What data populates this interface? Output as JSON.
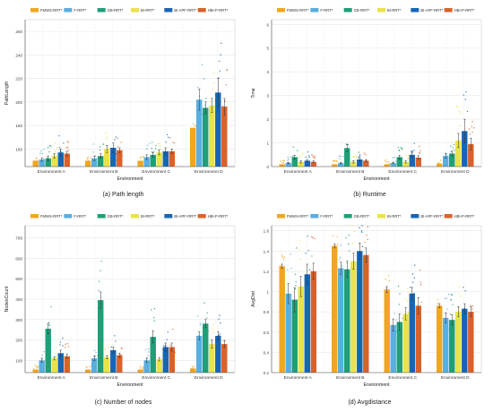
{
  "colors": {
    "series": [
      "#f0a623",
      "#5aaee0",
      "#1f9e78",
      "#e8e34a",
      "#1766b5",
      "#d9622b"
    ],
    "grid": "#e6e6e6",
    "axis": "#555555"
  },
  "captions": [
    "(a) Path length",
    "(b) Runtime",
    "(c) Number of nodes",
    "(d) Avgdistance"
  ],
  "chart_data": [
    {
      "type": "bar",
      "title": "(a) Path length",
      "xlabel": "Environment",
      "ylabel": "PathLength",
      "categories": [
        "Environment A",
        "Environment B",
        "Environment C",
        "Environment D"
      ],
      "ylim": [
        145,
        270
      ],
      "yticks": [
        160,
        180,
        200,
        220,
        240,
        260
      ],
      "grid": true,
      "legend_position": "top",
      "series": [
        {
          "name": "FMWS-RRT*",
          "values": [
            150,
            150,
            150,
            178
          ],
          "errors": [
            0,
            0,
            0,
            0
          ]
        },
        {
          "name": "F-RRT*",
          "values": [
            151,
            152,
            153,
            202
          ],
          "errors": [
            1.5,
            2,
            2,
            9
          ]
        },
        {
          "name": "GB-RRT*",
          "values": [
            152,
            154,
            155,
            195
          ],
          "errors": [
            2,
            2,
            2,
            5
          ]
        },
        {
          "name": "BI-RRT*",
          "values": [
            154,
            160,
            157,
            197
          ],
          "errors": [
            2,
            3,
            2,
            6
          ]
        },
        {
          "name": "BI-APF-RRT*",
          "values": [
            157,
            161,
            158,
            208
          ],
          "errors": [
            3,
            4,
            3,
            12
          ]
        },
        {
          "name": "HBI-P-RRT*",
          "values": [
            156,
            159,
            158,
            196
          ],
          "errors": [
            2,
            2,
            2,
            7
          ]
        }
      ]
    },
    {
      "type": "bar",
      "title": "(b) Runtime",
      "xlabel": "Environment",
      "ylabel": "Time",
      "categories": [
        "Environment A",
        "Environment B",
        "Environment C",
        "Environment D"
      ],
      "ylim": [
        0,
        6.2
      ],
      "yticks": [
        0,
        1,
        2,
        3,
        4,
        5,
        6
      ],
      "grid": true,
      "legend_position": "top",
      "series": [
        {
          "name": "FMWS-RRT*",
          "values": [
            0.1,
            0.1,
            0.1,
            0.12
          ],
          "errors": [
            0,
            0,
            0,
            0
          ]
        },
        {
          "name": "F-RRT*",
          "values": [
            0.15,
            0.15,
            0.15,
            0.45
          ],
          "errors": [
            0.03,
            0.03,
            0.03,
            0.1
          ]
        },
        {
          "name": "GB-RRT*",
          "values": [
            0.4,
            0.78,
            0.4,
            0.55
          ],
          "errors": [
            0.08,
            0.15,
            0.08,
            0.1
          ]
        },
        {
          "name": "BI-RRT*",
          "values": [
            0.2,
            0.2,
            0.2,
            1.1
          ],
          "errors": [
            0.05,
            0.05,
            0.05,
            0.3
          ]
        },
        {
          "name": "BI-APF-RRT*",
          "values": [
            0.25,
            0.3,
            0.5,
            1.5
          ],
          "errors": [
            0.05,
            0.06,
            0.1,
            0.5
          ]
        },
        {
          "name": "HBI-P-RRT*",
          "values": [
            0.2,
            0.25,
            0.38,
            0.95
          ],
          "errors": [
            0.04,
            0.05,
            0.08,
            0.25
          ]
        }
      ]
    },
    {
      "type": "bar",
      "title": "(c) Number of nodes",
      "xlabel": "Environment",
      "ylabel": "NodesCount",
      "categories": [
        "Environment A",
        "Environment B",
        "Environment C",
        "Environment D"
      ],
      "ylim": [
        40,
        760
      ],
      "yticks": [
        100,
        200,
        300,
        400,
        500,
        600,
        700
      ],
      "grid": true,
      "legend_position": "top",
      "series": [
        {
          "name": "FMWS-RRT*",
          "values": [
            55,
            55,
            55,
            60
          ],
          "errors": [
            0,
            0,
            0,
            0
          ]
        },
        {
          "name": "F-RRT*",
          "values": [
            100,
            110,
            100,
            220
          ],
          "errors": [
            10,
            12,
            10,
            20
          ]
        },
        {
          "name": "GB-RRT*",
          "values": [
            255,
            395,
            215,
            280
          ],
          "errors": [
            25,
            40,
            30,
            20
          ]
        },
        {
          "name": "BI-RRT*",
          "values": [
            110,
            115,
            105,
            180
          ],
          "errors": [
            8,
            8,
            8,
            20
          ]
        },
        {
          "name": "BI-APF-RRT*",
          "values": [
            135,
            150,
            165,
            220
          ],
          "errors": [
            15,
            15,
            20,
            20
          ]
        },
        {
          "name": "HBI-P-RRT*",
          "values": [
            120,
            125,
            165,
            180
          ],
          "errors": [
            10,
            10,
            20,
            15
          ]
        }
      ]
    },
    {
      "type": "bar",
      "title": "(d) Avgdistance",
      "xlabel": "Environment",
      "ylabel": "AvgDist",
      "categories": [
        "Environment A",
        "Environment B",
        "Environment C",
        "Environment D"
      ],
      "ylim": [
        0.2,
        1.65
      ],
      "yticks": [
        0.2,
        0.4,
        0.6,
        0.8,
        1.0,
        1.2,
        1.4,
        1.6
      ],
      "grid": true,
      "legend_position": "top",
      "series": [
        {
          "name": "FMWS-RRT*",
          "values": [
            1.25,
            1.45,
            1.02,
            0.86
          ],
          "errors": [
            0.02,
            0.02,
            0.03,
            0.02
          ]
        },
        {
          "name": "F-RRT*",
          "values": [
            0.98,
            1.23,
            0.67,
            0.74
          ],
          "errors": [
            0.1,
            0.06,
            0.06,
            0.05
          ]
        },
        {
          "name": "GB-RRT*",
          "values": [
            0.92,
            1.22,
            0.7,
            0.72
          ],
          "errors": [
            0.12,
            0.08,
            0.08,
            0.05
          ]
        },
        {
          "name": "BI-RRT*",
          "values": [
            1.05,
            1.3,
            0.78,
            0.8
          ],
          "errors": [
            0.1,
            0.08,
            0.06,
            0.05
          ]
        },
        {
          "name": "BI-APF-RRT*",
          "values": [
            1.17,
            1.4,
            0.98,
            0.83
          ],
          "errors": [
            0.1,
            0.08,
            0.06,
            0.05
          ]
        },
        {
          "name": "HBI-P-RRT*",
          "values": [
            1.2,
            1.36,
            0.86,
            0.8
          ],
          "errors": [
            0.08,
            0.07,
            0.08,
            0.05
          ]
        }
      ]
    }
  ]
}
